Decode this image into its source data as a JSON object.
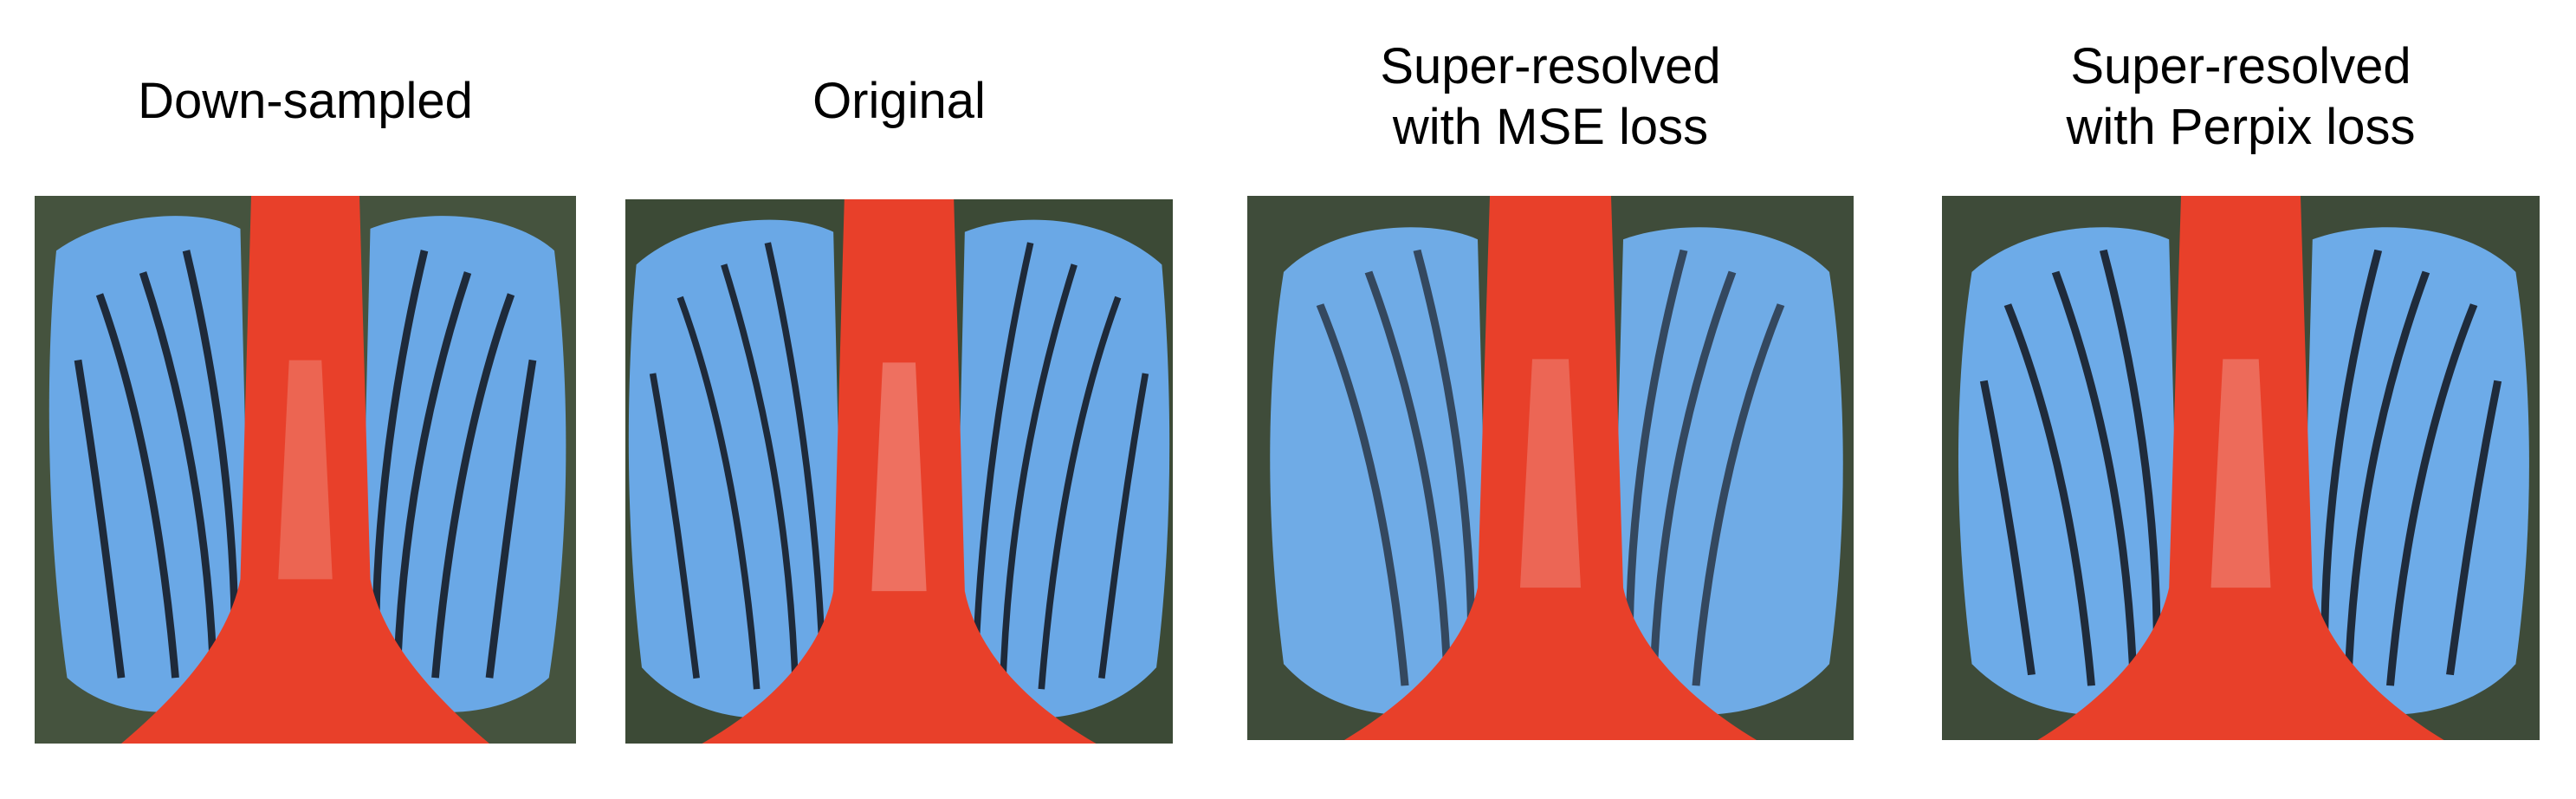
{
  "figure": {
    "panels": [
      {
        "caption": "Down-sampled",
        "quality": "pixelated"
      },
      {
        "caption": "Original",
        "quality": "sharp"
      },
      {
        "caption": "Super-resolved\nwith MSE loss",
        "quality": "smooth"
      },
      {
        "caption": "Super-resolved\nwith Perpix loss",
        "quality": "smooth"
      }
    ],
    "colors": {
      "background_fur": "#3c4a36",
      "blue_cheek": "#6aa8e6",
      "blue_light": "#a9cdf2",
      "red_nose": "#e8402a",
      "stripe": "#1e2a3a"
    }
  }
}
